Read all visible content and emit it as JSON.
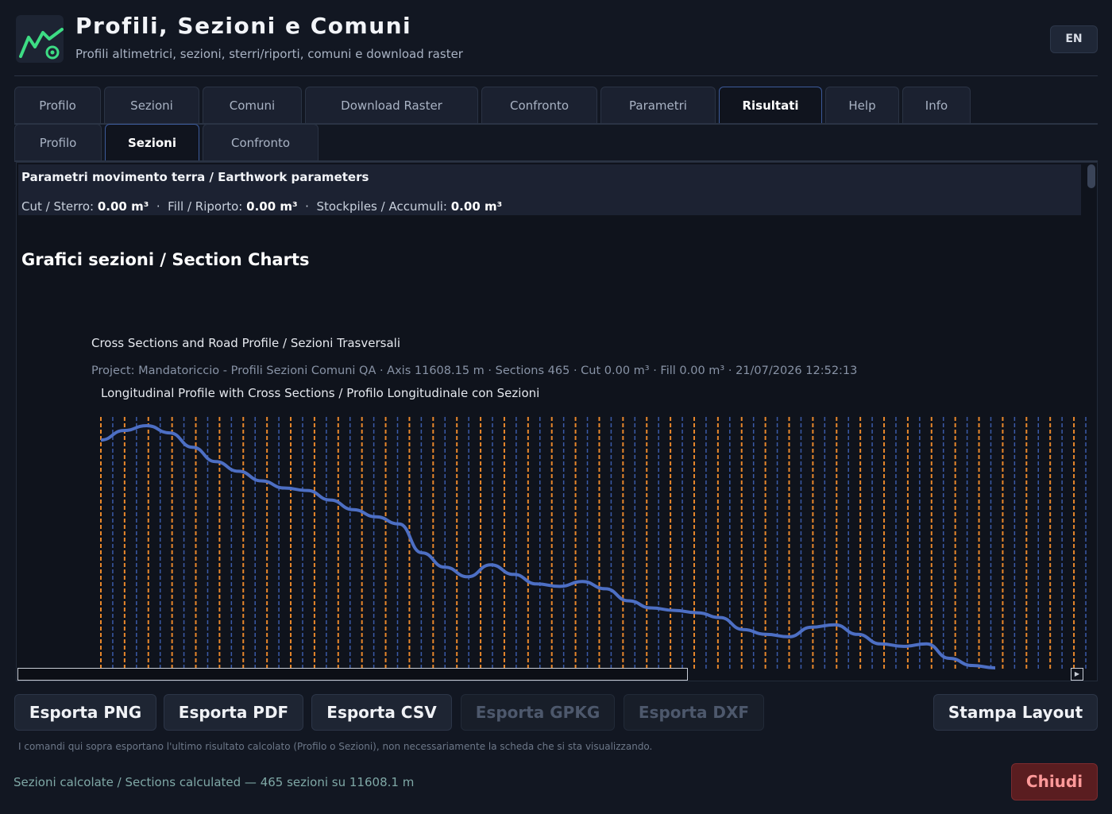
{
  "app": {
    "title": "Profili, Sezioni e Comuni",
    "subtitle": "Profili altimetrici, sezioni, sterri/riporti, comuni e download raster",
    "language_button": "EN",
    "logo_icon": "mountain-profile-icon"
  },
  "main_tabs": [
    {
      "label": "Profilo",
      "active": false
    },
    {
      "label": "Sezioni",
      "active": false
    },
    {
      "label": "Comuni",
      "active": false
    },
    {
      "label": "Download Raster",
      "active": false
    },
    {
      "label": "Confronto",
      "active": false
    },
    {
      "label": "Parametri",
      "active": false
    },
    {
      "label": "Risultati",
      "active": true
    },
    {
      "label": "Help",
      "active": false
    },
    {
      "label": "Info",
      "active": false
    }
  ],
  "sub_tabs": [
    {
      "label": "Profilo",
      "active": false
    },
    {
      "label": "Sezioni",
      "active": true
    },
    {
      "label": "Confronto",
      "active": false
    }
  ],
  "earthwork": {
    "title": "Parametri movimento terra / Earthwork parameters",
    "cut_label": "Cut / Sterro:",
    "cut_value": "0.00 m³",
    "fill_label": "Fill / Riporto:",
    "fill_value": "0.00 m³",
    "stock_label": "Stockpiles / Accumuli:",
    "stock_value": "0.00 m³",
    "separator": "·"
  },
  "charts_section_title": "Grafici sezioni / Section Charts",
  "chart": {
    "title": "Cross Sections and Road Profile / Sezioni Trasversali",
    "meta": "Project: Mandatoriccio - Profili Sezioni Comuni QA · Axis 11608.15 m · Sections 465 · Cut 0.00 m³ · Fill 0.00 m³ · 21/07/2026 12:52:13",
    "subtitle": "Longitudinal Profile with Cross Sections / Profilo Longitudinale con Sezioni"
  },
  "chart_data": {
    "type": "line",
    "title": "Longitudinal Profile with Cross Sections / Profilo Longitudinale con Sezioni",
    "xlabel": "",
    "ylabel": "",
    "grid": false,
    "series": [
      {
        "values": [
          0.93,
          0.97,
          0.99,
          0.96,
          0.9,
          0.84,
          0.8,
          0.76,
          0.73,
          0.72,
          0.68,
          0.64,
          0.61,
          0.58,
          0.46,
          0.4,
          0.36,
          0.41,
          0.37,
          0.33,
          0.32,
          0.34,
          0.31,
          0.26,
          0.23,
          0.22,
          0.21,
          0.19,
          0.14,
          0.12,
          0.11,
          0.15,
          0.16,
          0.12,
          0.08,
          0.07,
          0.08,
          0.02,
          -0.01,
          -0.02
        ],
        "color": "#4d6fc4"
      }
    ],
    "section_count": 465,
    "section_colors": [
      "#e8872b",
      "#3a5aa8"
    ]
  },
  "buttons": {
    "png": "Esporta PNG",
    "pdf": "Esporta PDF",
    "csv": "Esporta CSV",
    "gpkg": "Esporta GPKG",
    "dxf": "Esporta DXF",
    "print": "Stampa Layout",
    "close": "Chiudi"
  },
  "footnote": "I comandi qui sopra esportano l'ultimo risultato calcolato (Profilo o Sezioni), non necessariamente la scheda che si sta visualizzando.",
  "status": "Sezioni calcolate / Sections calculated — 465 sezioni su 11608.1 m"
}
